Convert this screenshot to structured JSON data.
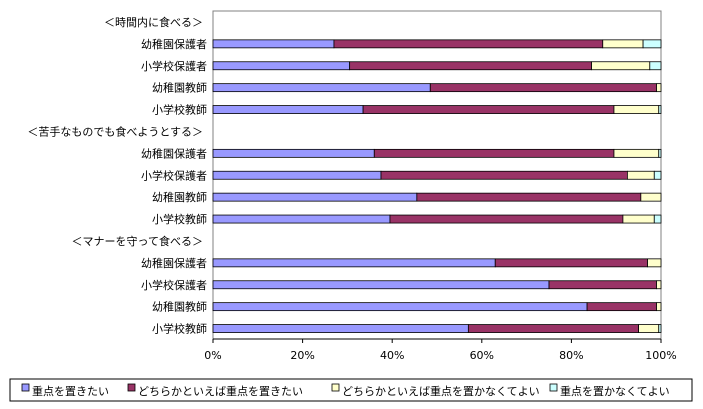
{
  "chart_data": {
    "type": "bar",
    "orientation": "horizontal",
    "stacked": "percent",
    "groups": [
      {
        "title": "＜時間内に食べる＞",
        "rows": [
          {
            "label": "幼稚園保護者",
            "values": [
              27,
              60,
              9,
              4
            ]
          },
          {
            "label": "小学校保護者",
            "values": [
              30.5,
              54,
              13,
              2.5
            ]
          },
          {
            "label": "幼稚園教師",
            "values": [
              48.5,
              50.5,
              1,
              0
            ]
          },
          {
            "label": "小学校教師",
            "values": [
              33.5,
              56,
              10,
              0.5
            ]
          }
        ]
      },
      {
        "title": "＜苦手なものでも食べようとする＞",
        "rows": [
          {
            "label": "幼稚園保護者",
            "values": [
              36,
              53.5,
              10,
              0.5
            ]
          },
          {
            "label": "小学校保護者",
            "values": [
              37.5,
              55,
              6,
              1.5
            ]
          },
          {
            "label": "幼稚園教師",
            "values": [
              45.5,
              50,
              4.5,
              0
            ]
          },
          {
            "label": "小学校教師",
            "values": [
              39.5,
              52,
              7,
              1.5
            ]
          }
        ]
      },
      {
        "title": "＜マナーを守って食べる＞",
        "rows": [
          {
            "label": "幼稚園保護者",
            "values": [
              63,
              34,
              3,
              0
            ]
          },
          {
            "label": "小学校保護者",
            "values": [
              75,
              24,
              1,
              0
            ]
          },
          {
            "label": "幼稚園教師",
            "values": [
              83.5,
              15.5,
              1,
              0
            ]
          },
          {
            "label": "小学校教師",
            "values": [
              57,
              38,
              4.5,
              0.5
            ]
          }
        ]
      }
    ],
    "series": [
      {
        "name": "重点を置きたい",
        "color": "#9999FF"
      },
      {
        "name": "どちらかといえば重点を置きたい",
        "color": "#993366"
      },
      {
        "name": "どちらかといえば重点を置かなくてよい",
        "color": "#FFFFCC"
      },
      {
        "name": "重点を置かなくてよい",
        "color": "#CCFFFF"
      }
    ],
    "x_ticks": [
      "0%",
      "20%",
      "40%",
      "60%",
      "80%",
      "100%"
    ],
    "xlim": [
      0,
      100
    ],
    "legend": "bottom"
  }
}
